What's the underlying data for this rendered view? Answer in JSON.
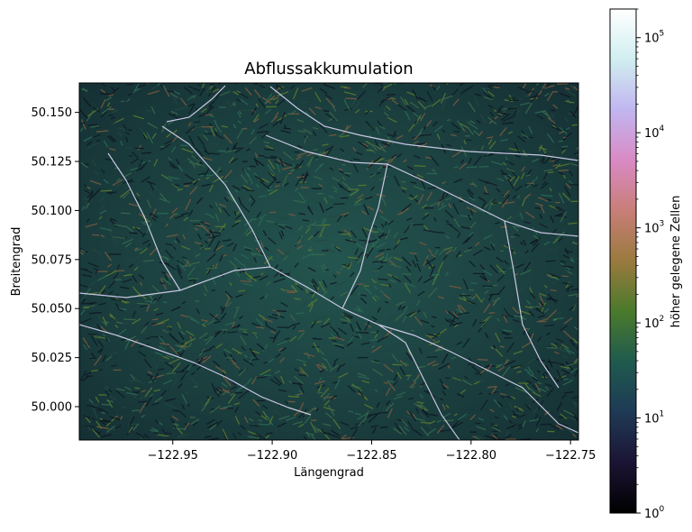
{
  "chart_data": {
    "type": "heatmap",
    "title": "Abflussakkumulation",
    "xlabel": "Längengrad",
    "ylabel": "Breitengrad",
    "xlim": [
      -122.997,
      -122.746
    ],
    "ylim": [
      49.983,
      50.165
    ],
    "x_ticks": [
      {
        "value": -122.95,
        "label": "−122.95"
      },
      {
        "value": -122.9,
        "label": "−122.90"
      },
      {
        "value": -122.85,
        "label": "−122.85"
      },
      {
        "value": -122.8,
        "label": "−122.80"
      },
      {
        "value": -122.75,
        "label": "−122.75"
      }
    ],
    "y_ticks": [
      {
        "value": 50.0,
        "label": "50.000"
      },
      {
        "value": 50.025,
        "label": "50.025"
      },
      {
        "value": 50.05,
        "label": "50.050"
      },
      {
        "value": 50.075,
        "label": "50.075"
      },
      {
        "value": 50.1,
        "label": "50.100"
      },
      {
        "value": 50.125,
        "label": "50.125"
      },
      {
        "value": 50.15,
        "label": "50.150"
      }
    ],
    "colorbar": {
      "label": "höher gelegene Zellen",
      "scale": "log",
      "range": [
        1,
        200000
      ],
      "colormap": [
        "#000000",
        "#1c1434",
        "#1e3a55",
        "#1f5a4e",
        "#4a7a2c",
        "#9a7a3e",
        "#c87e78",
        "#d98ac4",
        "#c1b6f0",
        "#d0eef0",
        "#ffffff"
      ],
      "ticks": [
        {
          "value": 1,
          "base": "10",
          "exp": "0"
        },
        {
          "value": 10,
          "base": "10",
          "exp": "1"
        },
        {
          "value": 100,
          "base": "10",
          "exp": "2"
        },
        {
          "value": 1000,
          "base": "10",
          "exp": "3"
        },
        {
          "value": 10000,
          "base": "10",
          "exp": "4"
        },
        {
          "value": 100000,
          "base": "10",
          "exp": "5"
        }
      ]
    },
    "background_color": "#1f4a4a",
    "stream_color": "#dcd6f4",
    "grid": false
  }
}
